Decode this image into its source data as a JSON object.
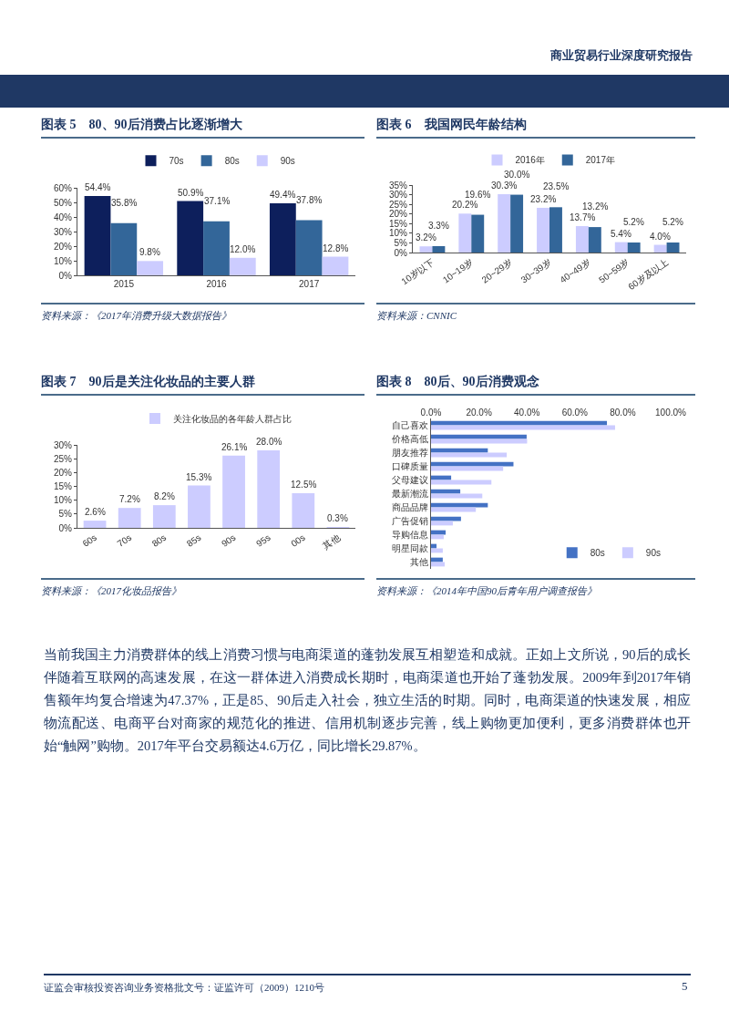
{
  "chart_data": [
    {
      "type": "bar",
      "title": "图表 5　80、90后消费占比逐渐增大",
      "categories": [
        "2015",
        "2016",
        "2017"
      ],
      "legend": "top",
      "ylim": [
        0,
        60
      ],
      "yticks": [
        {
          "value": 0,
          "label": "0%"
        },
        {
          "value": 10,
          "label": "10%"
        },
        {
          "value": 20,
          "label": "20%"
        },
        {
          "value": 30,
          "label": "30%"
        },
        {
          "value": 40,
          "label": "40%"
        },
        {
          "value": 50,
          "label": "50%"
        },
        {
          "value": 60,
          "label": "60%"
        }
      ],
      "series": [
        {
          "name": "70s",
          "color": "#0d1f5c",
          "values": [
            54.4,
            50.9,
            49.4
          ],
          "value_labels": [
            "54.4%",
            "50.9%",
            "49.4%"
          ]
        },
        {
          "name": "80s",
          "color": "#336699",
          "values": [
            35.8,
            37.1,
            37.8
          ],
          "value_labels": [
            "35.8%",
            "37.1%",
            "37.8%"
          ]
        },
        {
          "name": "90s",
          "color": "#ccccff",
          "values": [
            9.8,
            12.0,
            12.8
          ],
          "value_labels": [
            "9.8%",
            "12.0%",
            "12.8%"
          ]
        }
      ],
      "annotations": [
        "资料来源：《2017年消费升级大数据报告》"
      ]
    },
    {
      "type": "bar",
      "title": "图表 6　我国网民年龄结构",
      "categories": [
        "10岁以下",
        "10~19岁",
        "20~29岁",
        "30~39岁",
        "40~49岁",
        "50~59岁",
        "60岁及以上"
      ],
      "legend": "top",
      "ylim": [
        0,
        35
      ],
      "yticks": [
        {
          "value": 0,
          "label": "0%"
        },
        {
          "value": 5,
          "label": "5%"
        },
        {
          "value": 10,
          "label": "10%"
        },
        {
          "value": 15,
          "label": "15%"
        },
        {
          "value": 20,
          "label": "20%"
        },
        {
          "value": 25,
          "label": "25%"
        },
        {
          "value": 30,
          "label": "30%"
        },
        {
          "value": 35,
          "label": "35%"
        }
      ],
      "series": [
        {
          "name": "2016年",
          "color": "#ccccff",
          "values": [
            3.2,
            20.2,
            30.3,
            23.2,
            13.7,
            5.4,
            4.0
          ],
          "value_labels": [
            "3.2%",
            "20.2%",
            "30.3%",
            "23.2%",
            "13.7%",
            "5.4%",
            "4.0%"
          ]
        },
        {
          "name": "2017年",
          "color": "#336699",
          "values": [
            3.3,
            19.6,
            30.0,
            23.5,
            13.2,
            5.2,
            5.2
          ],
          "value_labels": [
            "3.3%",
            "19.6%",
            "30.0%",
            "23.5%",
            "13.2%",
            "5.2%",
            "5.2%"
          ]
        }
      ],
      "annotations": [
        "资料来源：CNNIC"
      ]
    },
    {
      "type": "bar",
      "title": "图表 7　90后是关注化妆品的主要人群",
      "categories": [
        "60s",
        "70s",
        "80s",
        "85s",
        "90s",
        "95s",
        "00s",
        "其他"
      ],
      "legend": "top",
      "ylim": [
        0,
        30
      ],
      "yticks": [
        {
          "value": 0,
          "label": "0%"
        },
        {
          "value": 5,
          "label": "5%"
        },
        {
          "value": 10,
          "label": "10%"
        },
        {
          "value": 15,
          "label": "15%"
        },
        {
          "value": 20,
          "label": "20%"
        },
        {
          "value": 25,
          "label": "25%"
        },
        {
          "value": 30,
          "label": "30%"
        }
      ],
      "series": [
        {
          "name": "关注化妆品的各年龄人群占比",
          "color": "#ccccff",
          "values": [
            2.6,
            7.2,
            8.2,
            15.3,
            26.1,
            28.0,
            12.5,
            0.3
          ],
          "value_labels": [
            "2.6%",
            "7.2%",
            "8.2%",
            "15.3%",
            "26.1%",
            "28.0%",
            "12.5%",
            "0.3%"
          ]
        }
      ],
      "annotations": [
        "资料来源：《2017化妆品报告》"
      ]
    },
    {
      "type": "bar",
      "title": "图表 8　80后、90后消费观念",
      "orientation": "horizontal",
      "categories": [
        "自己喜欢",
        "价格高低",
        "朋友推荐",
        "口碑质量",
        "父母建议",
        "最新潮流",
        "商品品牌",
        "广告促销",
        "导购信息",
        "明星同款",
        "其他"
      ],
      "legend": "bottom right",
      "xlim": [
        0,
        100
      ],
      "xticks": [
        {
          "value": 0,
          "label": "0.0%"
        },
        {
          "value": 20,
          "label": "20.0%"
        },
        {
          "value": 40,
          "label": "40.0%"
        },
        {
          "value": 60,
          "label": "60.0%"
        },
        {
          "value": 80,
          "label": "80.0%"
        },
        {
          "value": 100,
          "label": "100.0%"
        }
      ],
      "series": [
        {
          "name": "80s",
          "color": "#4472c4",
          "values": [
            73.4,
            39.9,
            23.7,
            34.4,
            8.4,
            12.2,
            23.7,
            12.5,
            6.1,
            2.3,
            4.9
          ]
        },
        {
          "name": "90s",
          "color": "#ccccff",
          "values": [
            76.8,
            40.1,
            31.6,
            30.1,
            25.2,
            21.4,
            18.7,
            9.1,
            5.3,
            4.9,
            5.7
          ]
        }
      ],
      "annotations": [
        "资料来源：《2014年中国90后青年用户调查报告》"
      ]
    },
    {
      "type": "other",
      "title": "商业贸易行业深度研究报告",
      "annotations": [
        "当前我国主力消费群体的线上消费习惯与电商渠道的蓬勃发展互相塑造和成就。正如上文所说，90后的成长伴随着互联网的高速发展，在这一群体进入消费成长期时，电商渠道也开始了蓬勃发展。2009年到2017年销售额年均复合增速为47.37%，正是85、90后走入社会，独立生活的时期。同时，电商渠道的快速发展，相应物流配送、电商平台对商家的规范化的推进、信用机制逐步完善，线上购物更加便利，更多消费群体也开始“触网”购物。2017年平台交易额达4.6万亿，同比增长29.87%。",
        "证监会审核投资咨询业务资格批文号：证监许可（2009）1210号",
        "5"
      ]
    }
  ]
}
